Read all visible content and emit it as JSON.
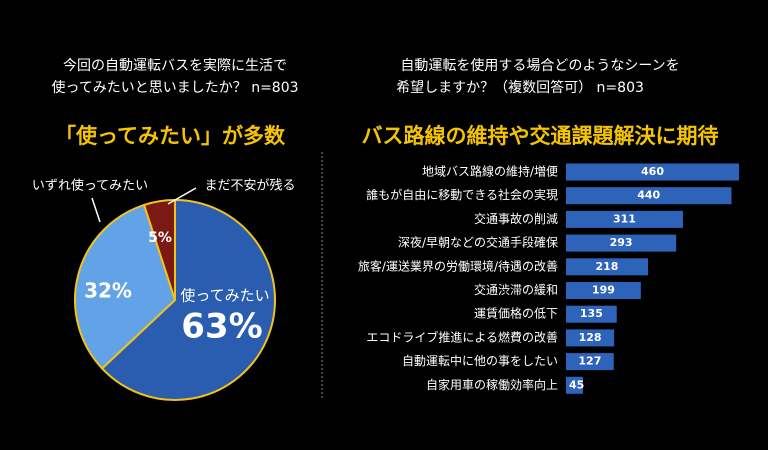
{
  "chart_data": [
    {
      "type": "pie",
      "title": [
        "今回の自動運転バスを実際に生活で",
        "使ってみたいと思いましたか？ n=803"
      ],
      "subtitle": "「使ってみたい」が多数",
      "categories": [
        "使ってみたい",
        "いずれ使ってみたい",
        "まだ不安が残る"
      ],
      "values": [
        63,
        32,
        5
      ],
      "value_labels": [
        "63%",
        "32%",
        "5%"
      ],
      "colors": [
        "#2a5cb0",
        "#62a2e6",
        "#7a1a12"
      ],
      "border_color": "#f0c419"
    },
    {
      "type": "hbar",
      "title": [
        "自動運転を使用する場合どのようなシーンを",
        "希望しますか？（複数回答可） n=803"
      ],
      "subtitle": "バス路線の維持や交通課題解決に期待",
      "categories": [
        "地域バス路線の維持/増便",
        "誰もが自由に移動できる社会の実現",
        "交通事故の削減",
        "深夜/早朝などの交通手段確保",
        "旅客/運送業界の労働環境/待遇の改善",
        "交通渋滞の緩和",
        "運賃価格の低下",
        "エコドライブ推進による燃費の改善",
        "自動運転中に他の事をしたい",
        "自家用車の稼働効率向上"
      ],
      "values": [
        460,
        440,
        311,
        293,
        218,
        199,
        135,
        128,
        127,
        45
      ],
      "color": "#2d63b8"
    }
  ]
}
